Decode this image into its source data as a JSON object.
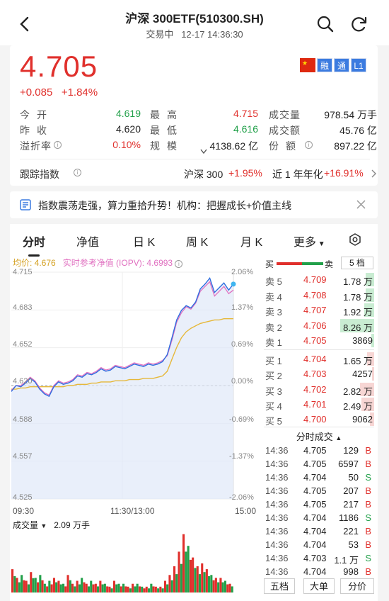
{
  "header": {
    "title": "沪深 300ETF(510300.SH)",
    "status": "交易中",
    "datetime": "12-17 14:36:30"
  },
  "quote": {
    "price": "4.705",
    "change": "+0.085",
    "change_pct": "+1.84%",
    "badges": [
      "融",
      "通",
      "L1"
    ],
    "stats": [
      {
        "label": "今开",
        "value": "4.619",
        "color": "green"
      },
      {
        "label": "最高",
        "value": "4.715",
        "color": "red"
      },
      {
        "label": "成交量",
        "value": "978.54 万手",
        "color": "black"
      },
      {
        "label": "昨收",
        "value": "4.620",
        "color": "black"
      },
      {
        "label": "最低",
        "value": "4.616",
        "color": "green"
      },
      {
        "label": "成交额",
        "value": "45.76 亿",
        "color": "black"
      },
      {
        "label": "溢折率",
        "value": "0.10%",
        "color": "red"
      },
      {
        "label": "规模",
        "value": "4138.62 亿",
        "color": "black"
      },
      {
        "label": "份额",
        "value": "897.22 亿",
        "color": "black"
      }
    ],
    "tracking": {
      "label": "跟踪指数",
      "index_name": "沪深 300",
      "index_change": "+1.95%",
      "annual_label": "近 1 年年化",
      "annual_value": "+16.91%"
    }
  },
  "news": {
    "text": "指数震荡走强，算力重拾升势！机构：把握成长+价值主线"
  },
  "tabs": [
    "分时",
    "净值",
    "日 K",
    "周 K",
    "月 K",
    "更多"
  ],
  "chart": {
    "avg_label": "均价: 4.676",
    "iopv_label": "实时参考净值 (IOPV): 4.6993",
    "y_left": [
      "4.715",
      "4.683",
      "4.652",
      "4.620",
      "4.588",
      "4.557",
      "4.525"
    ],
    "y_right": [
      "2.06%",
      "1.37%",
      "0.69%",
      "0.00%",
      "-0.69%",
      "-1.37%",
      "-2.06%"
    ],
    "x_labels": [
      "09:30",
      "11:30/13:00",
      "15:00"
    ],
    "volume_label": "成交量",
    "volume_value": "2.09 万手",
    "colors": {
      "price": "#2f6fe0",
      "iopv": "#e070c0",
      "avg": "#e6b83a",
      "up": "#e0302c",
      "down": "#22a04a"
    }
  },
  "chart_data": {
    "type": "line",
    "ylim": [
      4.525,
      4.715
    ],
    "x_range": [
      "09:30",
      "15:00"
    ],
    "series": [
      {
        "values": [
          4.615,
          4.62,
          4.619,
          4.622,
          4.626,
          4.623,
          4.617,
          4.613,
          4.611,
          4.619,
          4.623,
          4.621,
          4.622,
          4.624,
          4.628,
          4.627,
          4.63,
          4.629,
          4.631,
          4.634,
          4.632,
          4.633,
          4.636,
          4.635,
          4.634,
          4.636,
          4.638,
          4.637,
          4.636,
          4.638,
          4.637,
          4.638,
          4.64,
          4.646,
          4.66,
          4.675,
          4.683,
          4.687,
          4.685,
          4.69,
          4.701,
          4.705,
          4.71,
          4.698,
          4.702,
          4.706,
          4.7,
          4.705
        ]
      },
      {
        "values": [
          4.616,
          4.62,
          4.62,
          4.623,
          4.627,
          4.624,
          4.618,
          4.614,
          4.612,
          4.62,
          4.624,
          4.622,
          4.623,
          4.625,
          4.629,
          4.628,
          4.631,
          4.63,
          4.632,
          4.635,
          4.633,
          4.634,
          4.637,
          4.636,
          4.635,
          4.637,
          4.639,
          4.638,
          4.637,
          4.639,
          4.638,
          4.639,
          4.641,
          4.645,
          4.658,
          4.673,
          4.681,
          4.686,
          4.684,
          4.689,
          4.699,
          4.703,
          4.707,
          4.695,
          4.699,
          4.703,
          4.697,
          4.7
        ]
      },
      {
        "values": [
          4.617,
          4.617,
          4.618,
          4.618,
          4.619,
          4.619,
          4.619,
          4.619,
          4.619,
          4.619,
          4.619,
          4.619,
          4.62,
          4.62,
          4.621,
          4.621,
          4.621,
          4.622,
          4.622,
          4.623,
          4.623,
          4.623,
          4.624,
          4.624,
          4.624,
          4.625,
          4.625,
          4.625,
          4.626,
          4.626,
          4.626,
          4.627,
          4.628,
          4.632,
          4.642,
          4.652,
          4.66,
          4.665,
          4.668,
          4.67,
          4.672,
          4.673,
          4.674,
          4.675,
          4.675,
          4.676,
          4.676,
          4.676
        ]
      }
    ],
    "volume": [
      0.8,
      0.5,
      0.6,
      0.4,
      0.7,
      0.5,
      0.6,
      0.3,
      0.4,
      0.5,
      0.4,
      0.3,
      0.6,
      0.3,
      0.4,
      0.5,
      0.3,
      0.4,
      0.3,
      0.4,
      0.3,
      0.2,
      0.4,
      0.3,
      0.3,
      0.2,
      0.3,
      0.3,
      0.2,
      0.2,
      0.3,
      0.2,
      0.2,
      0.4,
      0.6,
      0.9,
      1.4,
      2.0,
      1.6,
      1.2,
      0.9,
      1.0,
      0.8,
      0.6,
      0.5,
      0.5,
      0.4,
      0.3
    ]
  },
  "order_book": {
    "buy_label": "买",
    "sell_label": "卖",
    "depth_button": "5 档",
    "asks": [
      {
        "label": "卖 5",
        "price": "4.709",
        "vol": "1.78 万"
      },
      {
        "label": "卖 4",
        "price": "4.708",
        "vol": "1.78 万"
      },
      {
        "label": "卖 3",
        "price": "4.707",
        "vol": "1.92 万"
      },
      {
        "label": "卖 2",
        "price": "4.706",
        "vol": "8.26 万"
      },
      {
        "label": "卖 1",
        "price": "4.705",
        "vol": "3869"
      }
    ],
    "bids": [
      {
        "label": "买 1",
        "price": "4.704",
        "vol": "1.65 万"
      },
      {
        "label": "买 2",
        "price": "4.703",
        "vol": "4257"
      },
      {
        "label": "买 3",
        "price": "4.702",
        "vol": "2.82 万"
      },
      {
        "label": "买 4",
        "price": "4.701",
        "vol": "2.49 万"
      },
      {
        "label": "买 5",
        "price": "4.700",
        "vol": "9062"
      }
    ],
    "trades_label": "分时成交",
    "trades": [
      {
        "time": "14:36",
        "price": "4.705",
        "vol": "129",
        "side": "B"
      },
      {
        "time": "14:36",
        "price": "4.705",
        "vol": "6597",
        "side": "B"
      },
      {
        "time": "14:36",
        "price": "4.704",
        "vol": "50",
        "side": "S"
      },
      {
        "time": "14:36",
        "price": "4.705",
        "vol": "207",
        "side": "B"
      },
      {
        "time": "14:36",
        "price": "4.705",
        "vol": "217",
        "side": "B"
      },
      {
        "time": "14:36",
        "price": "4.704",
        "vol": "1186",
        "side": "S"
      },
      {
        "time": "14:36",
        "price": "4.704",
        "vol": "221",
        "side": "B"
      },
      {
        "time": "14:36",
        "price": "4.704",
        "vol": "53",
        "side": "B"
      },
      {
        "time": "14:36",
        "price": "4.703",
        "vol": "1.1 万",
        "side": "S"
      },
      {
        "time": "14:36",
        "price": "4.704",
        "vol": "998",
        "side": "B"
      }
    ],
    "bottom_tabs": [
      "五档",
      "大单",
      "分价"
    ]
  }
}
